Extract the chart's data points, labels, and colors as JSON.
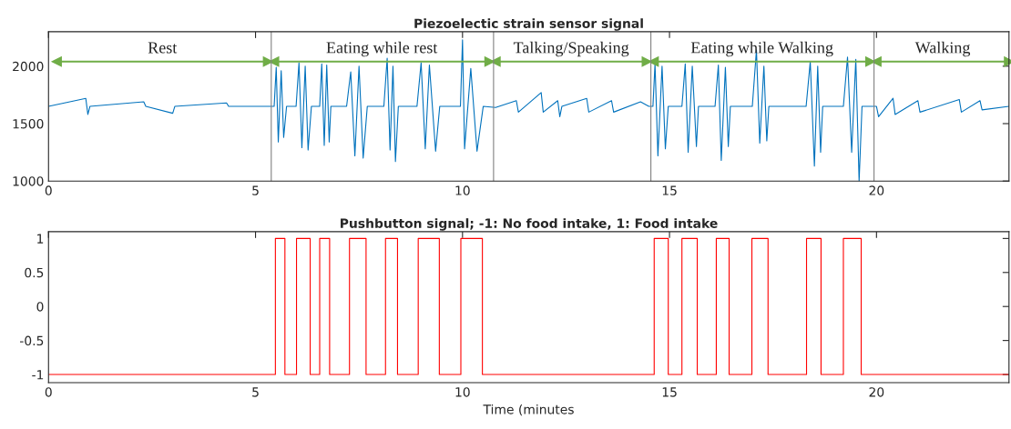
{
  "chart_data": [
    {
      "type": "line",
      "title": "Piezoelectic strain sensor signal",
      "xlim": [
        0,
        23.2
      ],
      "xticks": [
        0,
        5,
        10,
        15,
        20
      ],
      "ylim": [
        1000,
        2300
      ],
      "yticks": [
        1000,
        1500,
        2000
      ],
      "grid": false,
      "legend": false,
      "line_style": "solid",
      "marker": "none",
      "series": [
        {
          "color": "#0072bd",
          "x": [
            0,
            0.9,
            0.95,
            1.0,
            2.3,
            2.35,
            3.0,
            3.05,
            4.3,
            4.35,
            5.4,
            5.45,
            5.5,
            5.55,
            5.62,
            5.68,
            5.75,
            5.98,
            6.05,
            6.12,
            6.2,
            6.27,
            6.35,
            6.55,
            6.6,
            6.66,
            6.72,
            6.78,
            6.82,
            7.2,
            7.3,
            7.4,
            7.5,
            7.6,
            7.7,
            8.1,
            8.18,
            8.25,
            8.32,
            8.38,
            8.45,
            8.9,
            9.0,
            9.1,
            9.2,
            9.35,
            9.45,
            9.95,
            10.0,
            10.05,
            10.2,
            10.35,
            10.5,
            10.8,
            11.3,
            11.35,
            11.9,
            11.95,
            12.3,
            12.35,
            12.4,
            13.0,
            13.05,
            13.6,
            13.65,
            14.3,
            14.5,
            14.6,
            14.65,
            14.72,
            14.82,
            14.9,
            14.97,
            15.3,
            15.38,
            15.45,
            15.55,
            15.65,
            15.7,
            16.1,
            16.18,
            16.25,
            16.35,
            16.42,
            16.47,
            17.0,
            17.1,
            17.18,
            17.28,
            17.35,
            17.4,
            18.3,
            18.4,
            18.5,
            18.58,
            18.65,
            18.7,
            19.2,
            19.3,
            19.4,
            19.5,
            19.58,
            19.65,
            20.0,
            20.05,
            20.4,
            20.45,
            21.0,
            21.05,
            22.0,
            22.05,
            22.5,
            22.55,
            23.2
          ],
          "values": [
            1650,
            1720,
            1580,
            1650,
            1690,
            1650,
            1590,
            1650,
            1680,
            1650,
            1650,
            1650,
            1990,
            1340,
            1960,
            1380,
            1650,
            1650,
            2030,
            1290,
            2000,
            1270,
            1650,
            1650,
            2020,
            1310,
            2010,
            1340,
            1650,
            1650,
            1950,
            1220,
            2000,
            1200,
            1650,
            1650,
            2070,
            1270,
            2000,
            1170,
            1650,
            1650,
            2030,
            1280,
            2010,
            1260,
            1650,
            1650,
            2230,
            1280,
            1980,
            1260,
            1650,
            1640,
            1700,
            1600,
            1770,
            1600,
            1700,
            1560,
            1650,
            1720,
            1600,
            1700,
            1600,
            1690,
            1650,
            1650,
            2020,
            1220,
            2000,
            1280,
            1650,
            1650,
            2020,
            1250,
            2000,
            1300,
            1650,
            1650,
            2010,
            1180,
            1990,
            1300,
            1650,
            1650,
            2140,
            1330,
            2000,
            1350,
            1650,
            1650,
            2040,
            1130,
            2000,
            1250,
            1650,
            1650,
            2080,
            1250,
            2060,
            1000,
            1650,
            1650,
            1560,
            1720,
            1580,
            1700,
            1600,
            1710,
            1600,
            1700,
            1620,
            1650
          ]
        },
        {
          "color": "#70ad47",
          "marker": "triangle",
          "x": [
            0.2,
            5.3
          ],
          "values": [
            2040,
            2040
          ]
        },
        {
          "color": "#70ad47",
          "marker": "triangle",
          "x": [
            5.45,
            10.65
          ],
          "values": [
            2040,
            2040
          ]
        },
        {
          "color": "#70ad47",
          "marker": "triangle",
          "x": [
            10.8,
            14.45
          ],
          "values": [
            2040,
            2040
          ]
        },
        {
          "color": "#70ad47",
          "marker": "triangle",
          "x": [
            14.62,
            19.85
          ],
          "values": [
            2040,
            2040
          ]
        },
        {
          "color": "#70ad47",
          "marker": "triangle",
          "x": [
            20.0,
            23.2
          ],
          "values": [
            2040,
            2040
          ]
        }
      ],
      "ref_lines": [
        {
          "axis": "x",
          "value": 5.38,
          "color": "#808080"
        },
        {
          "axis": "x",
          "value": 10.75,
          "color": "#808080"
        },
        {
          "axis": "x",
          "value": 14.55,
          "color": "#808080"
        },
        {
          "axis": "x",
          "value": 19.94,
          "color": "#808080"
        }
      ],
      "annotations": [
        "Rest",
        "Eating while rest",
        "Talking/Speaking",
        "Eating while Walking",
        "Walking"
      ]
    },
    {
      "type": "step",
      "title": "Pushbutton signal; -1: No food intake, 1: Food intake",
      "xlabel": "Time (minutes",
      "xlim": [
        0,
        23.2
      ],
      "xticks": [
        0,
        5,
        10,
        15,
        20
      ],
      "ylim": [
        -1.12,
        1.1
      ],
      "yticks": [
        -1,
        -0.5,
        0,
        0.5,
        1
      ],
      "grid": false,
      "legend": false,
      "line_style": "solid",
      "marker": "none",
      "series": [
        {
          "color": "#ff0000",
          "x": [
            0,
            5.48,
            5.71,
            5.99,
            6.32,
            6.55,
            6.79,
            7.27,
            7.67,
            8.14,
            8.43,
            8.93,
            9.44,
            9.96,
            10.48,
            14.63,
            14.97,
            15.3,
            15.67,
            16.13,
            16.44,
            16.99,
            17.38,
            18.31,
            18.66,
            19.2,
            19.63,
            23.2
          ],
          "values": [
            -1,
            1,
            -1,
            1,
            -1,
            1,
            -1,
            1,
            -1,
            1,
            -1,
            1,
            -1,
            1,
            -1,
            1,
            -1,
            1,
            -1,
            1,
            -1,
            1,
            -1,
            1,
            -1,
            1,
            -1,
            -1
          ]
        }
      ]
    }
  ]
}
